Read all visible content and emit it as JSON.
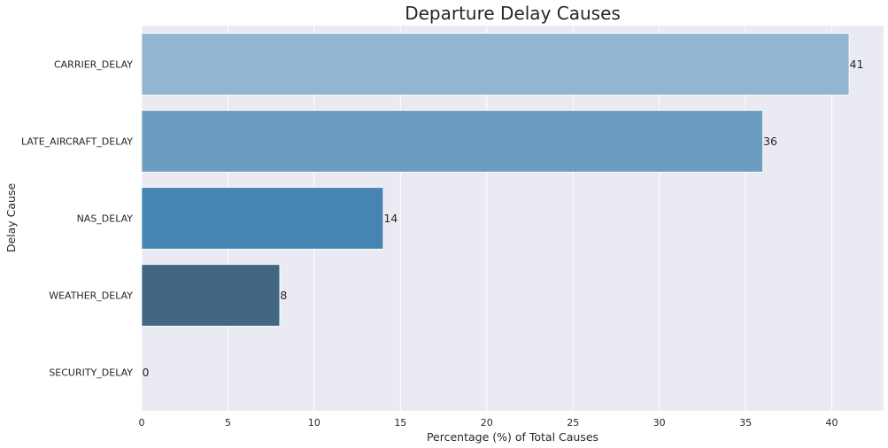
{
  "chart_data": {
    "type": "bar",
    "orientation": "horizontal",
    "title": "Departure Delay Causes",
    "xlabel": "Percentage (%) of Total Causes",
    "ylabel": "Delay Cause",
    "categories": [
      "CARRIER_DELAY",
      "LATE_AIRCRAFT_DELAY",
      "NAS_DELAY",
      "WEATHER_DELAY",
      "SECURITY_DELAY"
    ],
    "values": [
      41,
      36,
      14,
      8,
      0
    ],
    "value_labels": [
      "41",
      "36",
      "14",
      "8",
      "0"
    ],
    "colors": [
      "#92b5d1",
      "#6a9dc0",
      "#4684b2",
      "#416784",
      "#2d3f52"
    ],
    "xlim": [
      0,
      43
    ],
    "xticks": [
      0,
      5,
      10,
      15,
      20,
      25,
      30,
      35,
      40
    ],
    "grid": true,
    "legend": "none"
  },
  "style": {
    "plot_background": "#eaeaf2",
    "grid_color": "#ffffff",
    "text_color": "#262626"
  }
}
